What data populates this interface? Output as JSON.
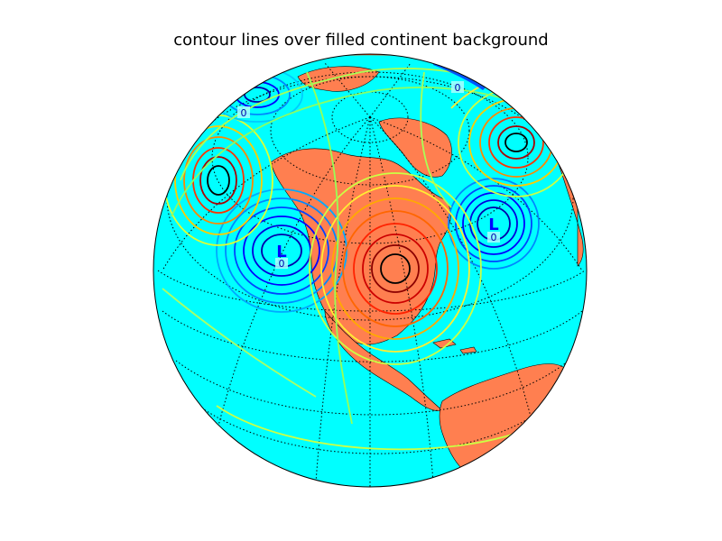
{
  "figure": {
    "title": "contour lines over filled continent background"
  },
  "map": {
    "projection": "orthographic",
    "ocean_color": "#00ffff",
    "land_color": "#ff7f50",
    "coastline_color": "#000000",
    "graticule_style": "dotted black"
  },
  "lows": [
    {
      "letter": "L",
      "label": "0"
    },
    {
      "letter": "L",
      "label": "0"
    },
    {
      "letter": "",
      "label": "0"
    },
    {
      "letter": "",
      "label": "0"
    }
  ]
}
